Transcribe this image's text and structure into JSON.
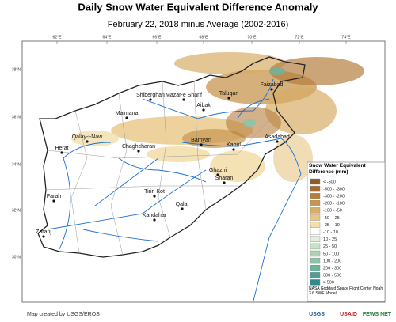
{
  "header": {
    "title": "Daily Snow Water Equivalent Difference Anomaly",
    "subtitle": "February 22, 2018 minus Average (2002-2016)"
  },
  "lon_ticks": [
    "62°E",
    "64°E",
    "66°E",
    "68°E",
    "70°E",
    "72°E",
    "74°E"
  ],
  "lat_ticks": [
    "38°N",
    "36°N",
    "34°N",
    "32°N",
    "30°N"
  ],
  "cities": [
    "Shiberghan",
    "Mazar-e Sharif",
    "Taluqan",
    "Faizabad",
    "Aibak",
    "Maimana",
    "Qalay-i-Naw",
    "Herat",
    "Chaghcharan",
    "Bamyan",
    "Kabul",
    "Asadabad",
    "Ghazni",
    "Sharan",
    "Tirin Kot",
    "Farah",
    "Qalat",
    "Kandahar",
    "Zaranj"
  ],
  "legend": {
    "title": "Snow Water Equivalent Difference (mm)",
    "items": [
      {
        "label": "< -500",
        "color": "#8c5a2b"
      },
      {
        "label": "-500 - -300",
        "color": "#a06a33"
      },
      {
        "label": "-300 - -200",
        "color": "#b57d3e"
      },
      {
        "label": "-200 - -100",
        "color": "#c8954f"
      },
      {
        "label": "-100 - -50",
        "color": "#d9ad67"
      },
      {
        "label": "-50 - -25",
        "color": "#e8c784"
      },
      {
        "label": "-25 - -10",
        "color": "#f3dfad"
      },
      {
        "label": "-10 - 10",
        "color": "#ffffff"
      },
      {
        "label": "10 - 25",
        "color": "#e3f0df"
      },
      {
        "label": "25 - 50",
        "color": "#c9e3c8"
      },
      {
        "label": "50 - 100",
        "color": "#acd4b4"
      },
      {
        "label": "100 - 200",
        "color": "#8dc4a6"
      },
      {
        "label": "200 - 300",
        "color": "#6fb29c"
      },
      {
        "label": "300 - 500",
        "color": "#4e9f95"
      },
      {
        "label": "> 500",
        "color": "#2e8a8c"
      }
    ],
    "note": "NASA Goddard Space Flight Center Noah 3.6 SWE Model."
  },
  "footer": {
    "credit": "Map created by USGS/EROS",
    "logos": [
      "USGS",
      "USAID",
      "FEWS NET"
    ]
  }
}
